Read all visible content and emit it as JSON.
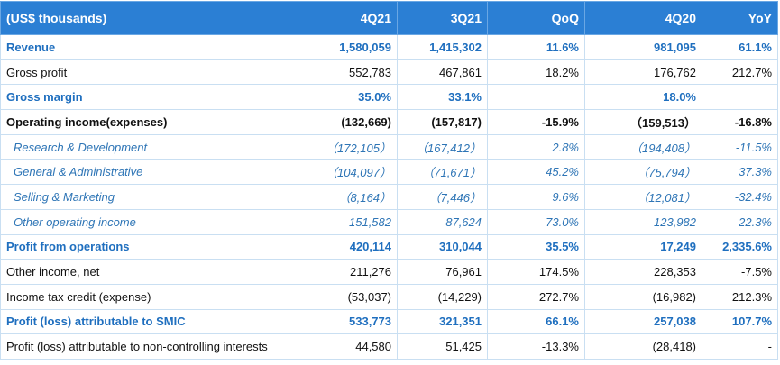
{
  "header": {
    "cells": [
      "(US$ thousands)",
      "4Q21",
      "3Q21",
      "QoQ",
      "4Q20",
      "YoY"
    ]
  },
  "rows": [
    {
      "style": "highlight",
      "cells": [
        "Revenue",
        "1,580,059",
        "1,415,302",
        "11.6%",
        "981,095",
        "61.1%"
      ]
    },
    {
      "style": "plain",
      "cells": [
        "Gross profit",
        "552,783",
        "467,861",
        "18.2%",
        "176,762",
        "212.7%"
      ]
    },
    {
      "style": "highlight",
      "cells": [
        "Gross margin",
        "35.0%",
        "33.1%",
        null,
        "18.0%",
        null
      ]
    },
    {
      "style": "bold",
      "cells": [
        "Operating income(expenses)",
        "(132,669)",
        "(157,817)",
        "-15.9%",
        "（159,513）",
        "-16.8%"
      ]
    },
    {
      "style": "sub",
      "cells": [
        "Research & Development",
        "（172,105）",
        "（167,412）",
        "2.8%",
        "（194,408）",
        "-11.5%"
      ]
    },
    {
      "style": "sub",
      "cells": [
        "General & Administrative",
        "（104,097）",
        "（71,671）",
        "45.2%",
        "（75,794）",
        "37.3%"
      ]
    },
    {
      "style": "sub",
      "cells": [
        "Selling & Marketing",
        "（8,164）",
        "（7,446）",
        "9.6%",
        "（12,081）",
        "-32.4%"
      ]
    },
    {
      "style": "sub",
      "cells": [
        "Other operating income",
        "151,582",
        "87,624",
        "73.0%",
        "123,982",
        "22.3%"
      ]
    },
    {
      "style": "highlight",
      "cells": [
        "Profit from operations",
        "420,114",
        "310,044",
        "35.5%",
        "17,249",
        "2,335.6%"
      ]
    },
    {
      "style": "plain",
      "cells": [
        "Other income, net",
        "211,276",
        "76,961",
        "174.5%",
        "228,353",
        "-7.5%"
      ]
    },
    {
      "style": "plain",
      "cells": [
        "Income tax credit (expense)",
        "(53,037)",
        "(14,229)",
        "272.7%",
        "(16,982)",
        "212.3%"
      ]
    },
    {
      "style": "highlight",
      "cells": [
        "Profit (loss) attributable to SMIC",
        "533,773",
        "321,351",
        "66.1%",
        "257,038",
        "107.7%"
      ]
    },
    {
      "style": "plain",
      "cells": [
        "Profit (loss) attributable to non-controlling interests",
        "44,580",
        "51,425",
        "-13.3%",
        "(28,418)",
        "-"
      ]
    }
  ]
}
